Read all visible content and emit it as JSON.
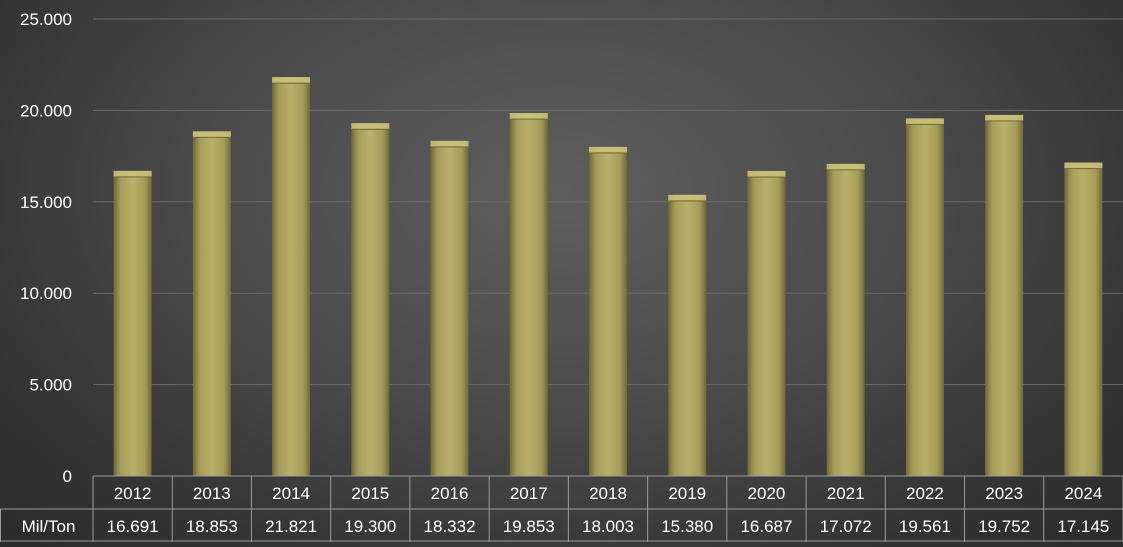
{
  "chart_data": {
    "type": "bar",
    "categories": [
      "2012",
      "2013",
      "2014",
      "2015",
      "2016",
      "2017",
      "2018",
      "2019",
      "2020",
      "2021",
      "2022",
      "2023",
      "2024"
    ],
    "series": [
      {
        "name": "Mil/Ton",
        "values": [
          16691,
          18853,
          21821,
          19300,
          18332,
          19853,
          18003,
          15380,
          16687,
          17072,
          19561,
          19752,
          17145
        ],
        "labels": [
          "16.691",
          "18.853",
          "21.821",
          "19.300",
          "18.332",
          "19.853",
          "18.003",
          "15.380",
          "16.687",
          "17.072",
          "19.561",
          "19.752",
          "17.145"
        ]
      }
    ],
    "title": "",
    "xlabel": "",
    "ylabel": "",
    "ylim": [
      0,
      25000
    ],
    "y_ticks": [
      0,
      5000,
      10000,
      15000,
      20000,
      25000
    ],
    "y_tick_labels": [
      "0",
      "5.000",
      "10.000",
      "15.000",
      "20.000",
      "25.000"
    ],
    "grid": true,
    "legend": "none",
    "data_table": true,
    "colors": {
      "bar": "#a59c5a",
      "bar_top": "#c9c07a",
      "grid": "#6a6a6a",
      "table_border": "#9a9a9a",
      "text": "#ffffff"
    }
  }
}
